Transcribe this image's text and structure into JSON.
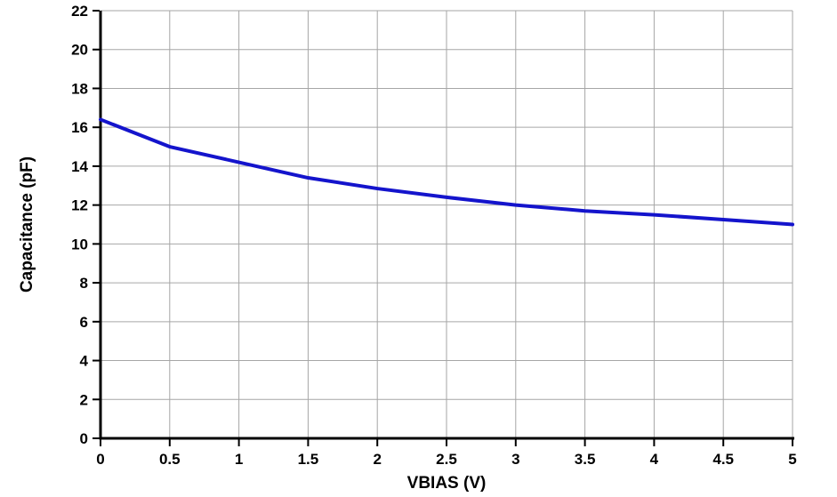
{
  "chart_data": {
    "type": "line",
    "title": "",
    "xlabel": "VBIAS (V)",
    "ylabel": "Capacitance (pF)",
    "x": [
      0,
      0.5,
      1,
      1.5,
      2,
      2.5,
      3,
      3.5,
      4,
      4.5,
      5
    ],
    "series": [
      {
        "name": "Capacitance",
        "values": [
          16.4,
          15.0,
          14.2,
          13.4,
          12.85,
          12.4,
          12.0,
          11.7,
          11.5,
          11.25,
          11.0
        ]
      }
    ],
    "xlim": [
      0,
      5
    ],
    "ylim": [
      0,
      22
    ],
    "x_ticks": [
      0,
      0.5,
      1,
      1.5,
      2,
      2.5,
      3,
      3.5,
      4,
      4.5,
      5
    ],
    "y_ticks": [
      0,
      2,
      4,
      6,
      8,
      10,
      12,
      14,
      16,
      18,
      20,
      22
    ],
    "x_tick_labels": [
      "0",
      "0.5",
      "1",
      "1.5",
      "2",
      "2.5",
      "3",
      "3.5",
      "4",
      "4.5",
      "5"
    ],
    "y_tick_labels": [
      "0",
      "2",
      "4",
      "6",
      "8",
      "10",
      "12",
      "14",
      "16",
      "18",
      "20",
      "22"
    ],
    "grid": true,
    "legend": false,
    "line_color": "#1414CC",
    "gridline_color": "#A6A6A6",
    "axis_color": "#000000",
    "background_color": "#FFFFFF"
  }
}
